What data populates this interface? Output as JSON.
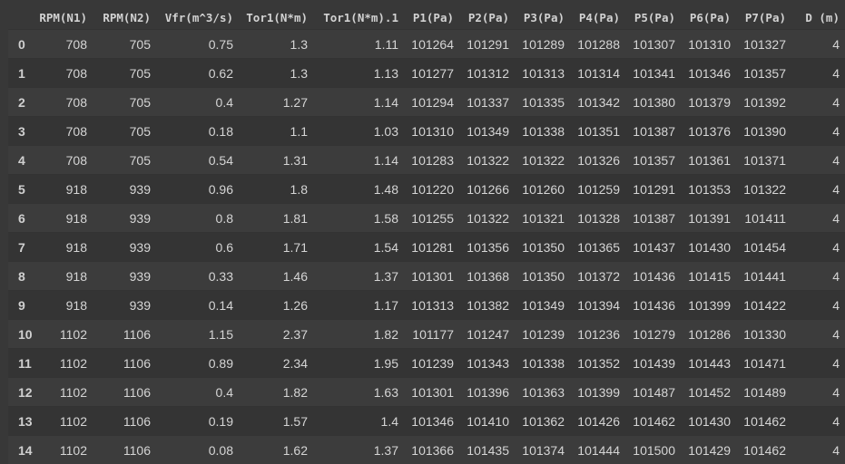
{
  "table": {
    "index_header": "",
    "columns": [
      "RPM(N1)",
      "RPM(N2)",
      "Vfr(m^3/s)",
      "Tor1(N*m)",
      "Tor1(N*m).1",
      "P1(Pa)",
      "P2(Pa)",
      "P3(Pa)",
      "P4(Pa)",
      "P5(Pa)",
      "P6(Pa)",
      "P7(Pa)",
      "D (m)"
    ],
    "rows": [
      {
        "index": "0",
        "cells": [
          "708",
          "705",
          "0.75",
          "1.3",
          "1.11",
          "101264",
          "101291",
          "101289",
          "101288",
          "101307",
          "101310",
          "101327",
          "4"
        ]
      },
      {
        "index": "1",
        "cells": [
          "708",
          "705",
          "0.62",
          "1.3",
          "1.13",
          "101277",
          "101312",
          "101313",
          "101314",
          "101341",
          "101346",
          "101357",
          "4"
        ]
      },
      {
        "index": "2",
        "cells": [
          "708",
          "705",
          "0.4",
          "1.27",
          "1.14",
          "101294",
          "101337",
          "101335",
          "101342",
          "101380",
          "101379",
          "101392",
          "4"
        ]
      },
      {
        "index": "3",
        "cells": [
          "708",
          "705",
          "0.18",
          "1.1",
          "1.03",
          "101310",
          "101349",
          "101338",
          "101351",
          "101387",
          "101376",
          "101390",
          "4"
        ]
      },
      {
        "index": "4",
        "cells": [
          "708",
          "705",
          "0.54",
          "1.31",
          "1.14",
          "101283",
          "101322",
          "101322",
          "101326",
          "101357",
          "101361",
          "101371",
          "4"
        ]
      },
      {
        "index": "5",
        "cells": [
          "918",
          "939",
          "0.96",
          "1.8",
          "1.48",
          "101220",
          "101266",
          "101260",
          "101259",
          "101291",
          "101353",
          "101322",
          "4"
        ]
      },
      {
        "index": "6",
        "cells": [
          "918",
          "939",
          "0.8",
          "1.81",
          "1.58",
          "101255",
          "101322",
          "101321",
          "101328",
          "101387",
          "101391",
          "101411",
          "4"
        ]
      },
      {
        "index": "7",
        "cells": [
          "918",
          "939",
          "0.6",
          "1.71",
          "1.54",
          "101281",
          "101356",
          "101350",
          "101365",
          "101437",
          "101430",
          "101454",
          "4"
        ]
      },
      {
        "index": "8",
        "cells": [
          "918",
          "939",
          "0.33",
          "1.46",
          "1.37",
          "101301",
          "101368",
          "101350",
          "101372",
          "101436",
          "101415",
          "101441",
          "4"
        ]
      },
      {
        "index": "9",
        "cells": [
          "918",
          "939",
          "0.14",
          "1.26",
          "1.17",
          "101313",
          "101382",
          "101349",
          "101394",
          "101436",
          "101399",
          "101422",
          "4"
        ]
      },
      {
        "index": "10",
        "cells": [
          "1102",
          "1106",
          "1.15",
          "2.37",
          "1.82",
          "101177",
          "101247",
          "101239",
          "101236",
          "101279",
          "101286",
          "101330",
          "4"
        ]
      },
      {
        "index": "11",
        "cells": [
          "1102",
          "1106",
          "0.89",
          "2.34",
          "1.95",
          "101239",
          "101343",
          "101338",
          "101352",
          "101439",
          "101443",
          "101471",
          "4"
        ]
      },
      {
        "index": "12",
        "cells": [
          "1102",
          "1106",
          "0.4",
          "1.82",
          "1.63",
          "101301",
          "101396",
          "101363",
          "101399",
          "101487",
          "101452",
          "101489",
          "4"
        ]
      },
      {
        "index": "13",
        "cells": [
          "1102",
          "1106",
          "0.19",
          "1.57",
          "1.4",
          "101346",
          "101410",
          "101362",
          "101426",
          "101462",
          "101430",
          "101462",
          "4"
        ]
      },
      {
        "index": "14",
        "cells": [
          "1102",
          "1106",
          "0.08",
          "1.62",
          "1.37",
          "101366",
          "101435",
          "101374",
          "101444",
          "101500",
          "101429",
          "101462",
          "4"
        ]
      }
    ]
  },
  "colors": {
    "background": "#383838",
    "row_odd": "#3c3c3c",
    "row_even": "#343434",
    "text": "#d5d5d5"
  }
}
